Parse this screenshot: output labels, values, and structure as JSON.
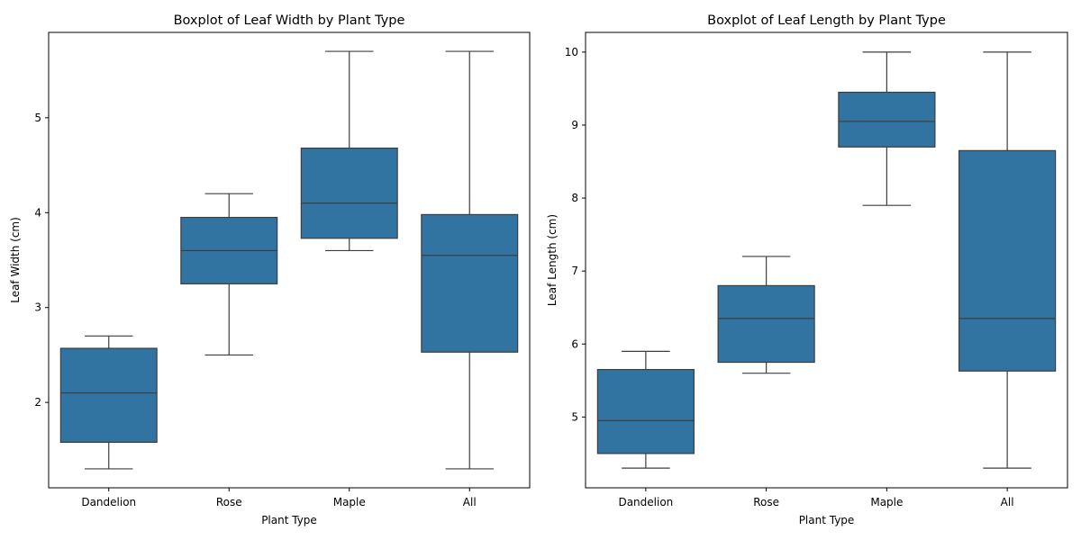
{
  "colors": {
    "box_fill": "#3274a1",
    "line": "#3d3d3d"
  },
  "chart_data": [
    {
      "type": "box",
      "title": "Boxplot of Leaf Width by Plant Type",
      "xlabel": "Plant Type",
      "ylabel": "Leaf Width (cm)",
      "ylim": [
        1.1,
        5.9
      ],
      "yticks": [
        2,
        3,
        4,
        5
      ],
      "grid": false,
      "categories": [
        "Dandelion",
        "Rose",
        "Maple",
        "All"
      ],
      "boxes": [
        {
          "category": "Dandelion",
          "min": 1.3,
          "q1": 1.58,
          "median": 2.1,
          "q3": 2.57,
          "max": 2.7
        },
        {
          "category": "Rose",
          "min": 2.5,
          "q1": 3.25,
          "median": 3.6,
          "q3": 3.95,
          "max": 4.2
        },
        {
          "category": "Maple",
          "min": 3.6,
          "q1": 3.73,
          "median": 4.1,
          "q3": 4.68,
          "max": 5.7
        },
        {
          "category": "All",
          "min": 1.3,
          "q1": 2.53,
          "median": 3.55,
          "q3": 3.98,
          "max": 5.7
        }
      ]
    },
    {
      "type": "box",
      "title": "Boxplot of Leaf Length by Plant Type",
      "xlabel": "Plant Type",
      "ylabel": "Leaf Length (cm)",
      "ylim": [
        4.03,
        10.27
      ],
      "yticks": [
        5,
        6,
        7,
        8,
        9,
        10
      ],
      "grid": false,
      "categories": [
        "Dandelion",
        "Rose",
        "Maple",
        "All"
      ],
      "boxes": [
        {
          "category": "Dandelion",
          "min": 4.3,
          "q1": 4.5,
          "median": 4.95,
          "q3": 5.65,
          "max": 5.9
        },
        {
          "category": "Rose",
          "min": 5.6,
          "q1": 5.75,
          "median": 6.35,
          "q3": 6.8,
          "max": 7.2
        },
        {
          "category": "Maple",
          "min": 7.9,
          "q1": 8.7,
          "median": 9.05,
          "q3": 9.45,
          "max": 10.0
        },
        {
          "category": "All",
          "min": 4.3,
          "q1": 5.63,
          "median": 6.35,
          "q3": 8.65,
          "max": 10.0
        }
      ]
    }
  ]
}
